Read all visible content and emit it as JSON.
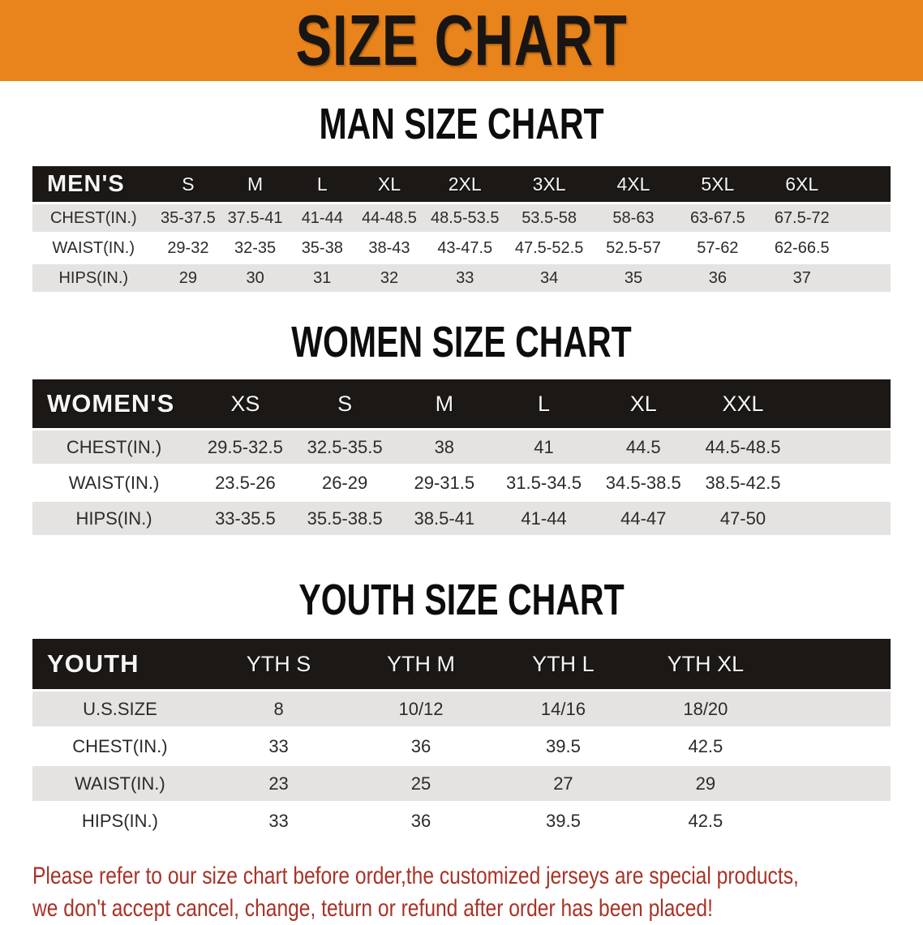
{
  "banner": {
    "title": "SIZE CHART"
  },
  "colors": {
    "banner_bg": "#E8841B",
    "table_header_bg": "#1C1815",
    "row_stripe": "#E4E3E1",
    "disclaimer_text": "#A93226"
  },
  "sections": [
    {
      "heading": "MAN SIZE CHART",
      "table": {
        "header_label": "MEN'S",
        "columns": [
          "S",
          "M",
          "L",
          "XL",
          "2XL",
          "3XL",
          "4XL",
          "5XL",
          "6XL"
        ],
        "rows": [
          {
            "label": "CHEST(IN.)",
            "values": [
              "35-37.5",
              "37.5-41",
              "41-44",
              "44-48.5",
              "48.5-53.5",
              "53.5-58",
              "58-63",
              "63-67.5",
              "67.5-72"
            ]
          },
          {
            "label": "WAIST(IN.)",
            "values": [
              "29-32",
              "32-35",
              "35-38",
              "38-43",
              "43-47.5",
              "47.5-52.5",
              "52.5-57",
              "57-62",
              "62-66.5"
            ]
          },
          {
            "label": "HIPS(IN.)",
            "values": [
              "29",
              "30",
              "31",
              "32",
              "33",
              "34",
              "35",
              "36",
              "37"
            ]
          }
        ]
      }
    },
    {
      "heading": "WOMEN SIZE CHART",
      "table": {
        "header_label": "WOMEN'S",
        "columns": [
          "XS",
          "S",
          "M",
          "L",
          "XL",
          "XXL"
        ],
        "rows": [
          {
            "label": "CHEST(IN.)",
            "values": [
              "29.5-32.5",
              "32.5-35.5",
              "38",
              "41",
              "44.5",
              "44.5-48.5"
            ]
          },
          {
            "label": "WAIST(IN.)",
            "values": [
              "23.5-26",
              "26-29",
              "29-31.5",
              "31.5-34.5",
              "34.5-38.5",
              "38.5-42.5"
            ]
          },
          {
            "label": "HIPS(IN.)",
            "values": [
              "33-35.5",
              "35.5-38.5",
              "38.5-41",
              "41-44",
              "44-47",
              "47-50"
            ]
          }
        ]
      }
    },
    {
      "heading": "YOUTH SIZE CHART",
      "table": {
        "header_label": "YOUTH",
        "columns": [
          "YTH S",
          "YTH M",
          "YTH L",
          "YTH XL"
        ],
        "rows": [
          {
            "label": "U.S.SIZE",
            "values": [
              "8",
              "10/12",
              "14/16",
              "18/20"
            ]
          },
          {
            "label": "CHEST(IN.)",
            "values": [
              "33",
              "36",
              "39.5",
              "42.5"
            ]
          },
          {
            "label": "WAIST(IN.)",
            "values": [
              "23",
              "25",
              "27",
              "29"
            ]
          },
          {
            "label": "HIPS(IN.)",
            "values": [
              "33",
              "36",
              "39.5",
              "42.5"
            ]
          }
        ]
      }
    }
  ],
  "disclaimer": {
    "line1": "Please refer to our size chart before order,the customized jerseys are special products,",
    "line2": "we don't accept cancel, change, teturn or refund after order has been placed!"
  }
}
